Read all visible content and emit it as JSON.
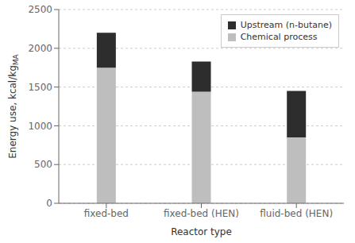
{
  "chart_data": {
    "type": "bar",
    "stacked": true,
    "categories": [
      "fixed-bed",
      "fixed-bed (HEN)",
      "fluid-bed (HEN)"
    ],
    "series": [
      {
        "name": "Chemical process",
        "color": "#bebebe",
        "values": [
          1750,
          1440,
          850
        ]
      },
      {
        "name": "Upstream (n-butane)",
        "color": "#2d2d2d",
        "values": [
          450,
          390,
          600
        ]
      }
    ],
    "xlabel": "Reactor type",
    "ylabel": "Energy use, kcal/kg",
    "ylabel_subscript": "MA",
    "ylim": [
      0,
      2500
    ],
    "yticks": [
      0,
      500,
      1000,
      1500,
      2000,
      2500
    ],
    "grid": true,
    "legend": "upper right"
  }
}
